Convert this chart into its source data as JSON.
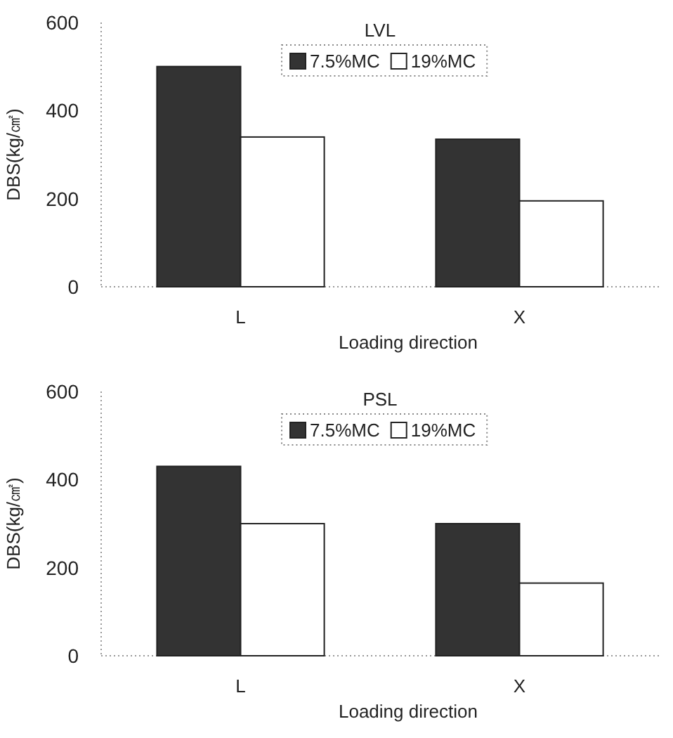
{
  "chart_data": [
    {
      "type": "bar",
      "title": "LVL",
      "xlabel": "Loading direction",
      "ylabel": "DBS(kg/㎠)",
      "categories": [
        "L",
        "X"
      ],
      "ylim": [
        0,
        600
      ],
      "yticks": [
        0,
        200,
        400,
        600
      ],
      "legend": "top",
      "grid": false,
      "series": [
        {
          "name": "7.5%MC",
          "color": "#333333",
          "values": [
            500,
            335
          ]
        },
        {
          "name": "19%MC",
          "color": "#ffffff",
          "values": [
            340,
            195
          ]
        }
      ]
    },
    {
      "type": "bar",
      "title": "PSL",
      "xlabel": "Loading direction",
      "ylabel": "DBS(kg/㎠)",
      "categories": [
        "L",
        "X"
      ],
      "ylim": [
        0,
        600
      ],
      "yticks": [
        0,
        200,
        400,
        600
      ],
      "legend": "top",
      "grid": false,
      "series": [
        {
          "name": "7.5%MC",
          "color": "#333333",
          "values": [
            430,
            300
          ]
        },
        {
          "name": "19%MC",
          "color": "#ffffff",
          "values": [
            300,
            165
          ]
        }
      ]
    }
  ]
}
